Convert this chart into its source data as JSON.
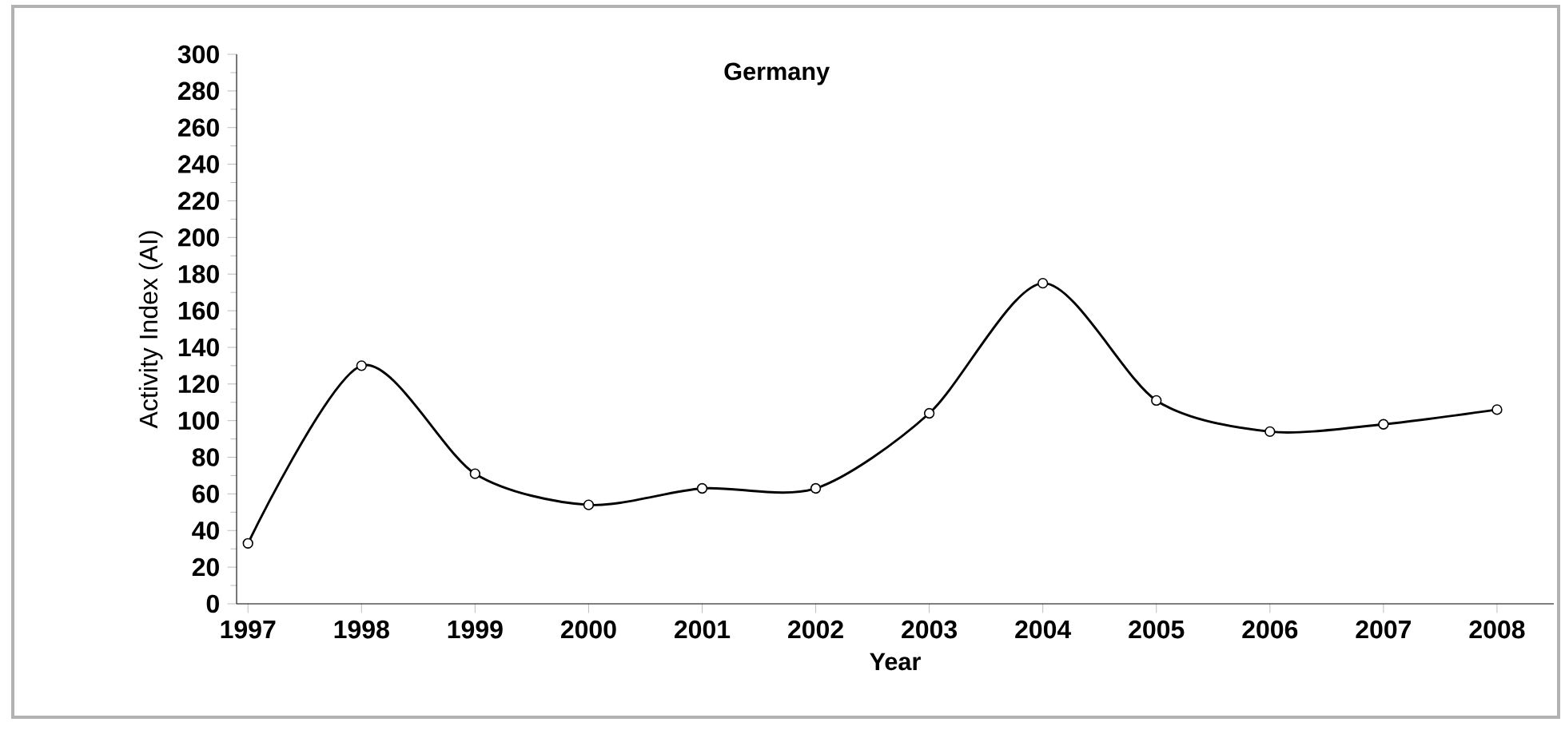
{
  "chart_data": {
    "type": "line",
    "title": "Germany",
    "xlabel": "Year",
    "ylabel": "Activity Index (AI)",
    "x": [
      1997,
      1998,
      1999,
      2000,
      2001,
      2002,
      2003,
      2004,
      2005,
      2006,
      2007,
      2008
    ],
    "values": [
      33,
      130,
      71,
      54,
      63,
      63,
      104,
      175,
      111,
      94,
      98,
      106
    ],
    "color": "#000000",
    "marker": "circle",
    "line_style": "solid",
    "xlim": [
      1996.9,
      2008.5
    ],
    "ylim": [
      0,
      300
    ],
    "xticks": [
      1997,
      1998,
      1999,
      2000,
      2001,
      2002,
      2003,
      2004,
      2005,
      2006,
      2007,
      2008
    ],
    "yticks": [
      0,
      20,
      40,
      60,
      80,
      100,
      120,
      140,
      160,
      180,
      200,
      220,
      240,
      260,
      280,
      300
    ]
  }
}
